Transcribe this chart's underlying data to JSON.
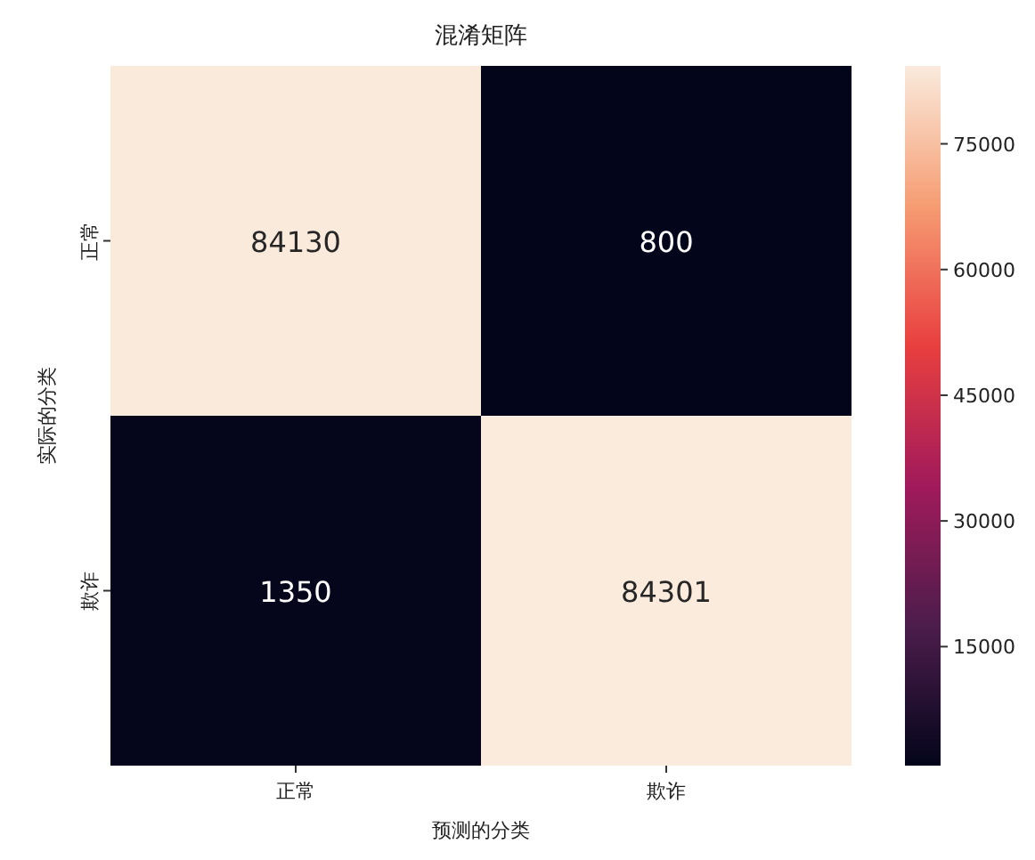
{
  "chart_data": {
    "type": "heatmap",
    "title": "混淆矩阵",
    "xlabel": "预测的分类",
    "ylabel": "实际的分类",
    "categories": [
      "正常",
      "欺诈"
    ],
    "y_categories": [
      "正常",
      "欺诈"
    ],
    "cells": [
      [
        84130,
        800
      ],
      [
        1350,
        84301
      ]
    ],
    "data_labels": true,
    "clim": [
      800,
      84301
    ],
    "cticks": [
      15000,
      30000,
      45000,
      60000,
      75000
    ]
  }
}
